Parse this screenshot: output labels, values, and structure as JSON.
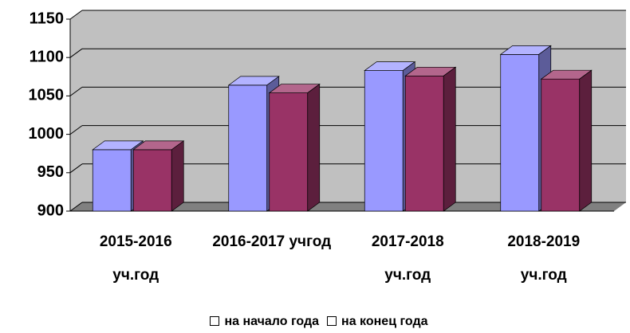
{
  "chart_data": {
    "type": "bar3d",
    "categories": [
      "2015-2016\nуч.год",
      "2016-2017 учгод",
      "2017-2018\nуч.год",
      "2018-2019\nуч.год"
    ],
    "series": [
      {
        "name": "на начало года",
        "color": "#9999ff",
        "values": [
          980,
          1064,
          1083,
          1104
        ]
      },
      {
        "name": "на конец года",
        "color": "#993366",
        "values": [
          980,
          1054,
          1076,
          1072
        ]
      }
    ],
    "ylim": [
      900,
      1150
    ],
    "yticks": [
      900,
      950,
      1000,
      1050,
      1100,
      1150
    ],
    "grid": true,
    "legend": "bottom"
  }
}
